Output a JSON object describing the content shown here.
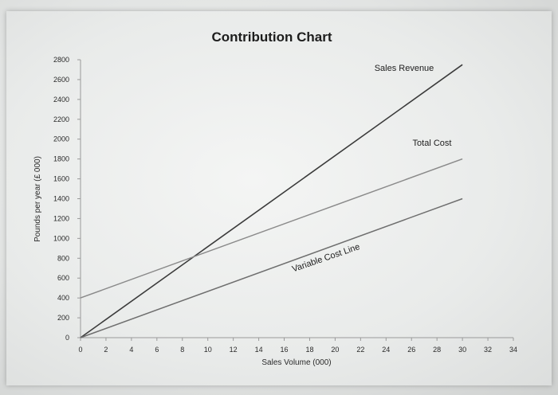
{
  "chart_data": {
    "type": "line",
    "title": "Contribution Chart",
    "xlabel": "Sales Volume (000)",
    "ylabel": "Pounds per year (£ 000)",
    "xlim": [
      0,
      34
    ],
    "ylim": [
      0,
      2800
    ],
    "xticks": [
      0,
      2,
      4,
      6,
      8,
      10,
      12,
      14,
      16,
      18,
      20,
      22,
      24,
      26,
      28,
      30,
      32,
      34
    ],
    "yticks": [
      0,
      200,
      400,
      600,
      800,
      1000,
      1200,
      1400,
      1600,
      1800,
      2000,
      2200,
      2400,
      2600,
      2800
    ],
    "grid": false,
    "series": [
      {
        "name": "Sales Revenue",
        "x": [
          0,
          30
        ],
        "y": [
          0,
          2750
        ],
        "color": "#3b3b3b"
      },
      {
        "name": "Total Cost",
        "x": [
          0,
          30
        ],
        "y": [
          400,
          1800
        ],
        "color": "#8a8a8a"
      },
      {
        "name": "Variable Cost Line",
        "x": [
          0,
          30
        ],
        "y": [
          0,
          1400
        ],
        "color": "#6e6e6e"
      }
    ]
  }
}
